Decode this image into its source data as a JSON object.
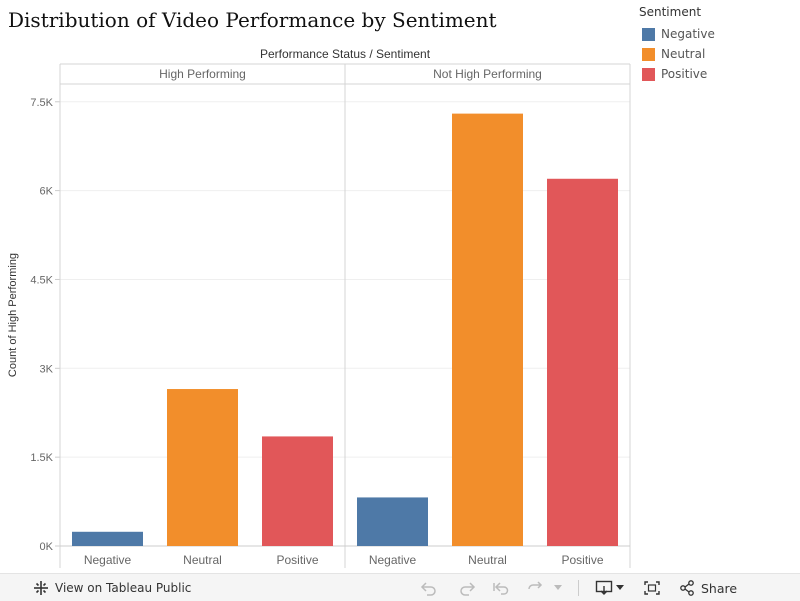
{
  "title": "Distribution of Video Performance by Sentiment",
  "legend": {
    "title": "Sentiment",
    "items": [
      {
        "label": "Negative",
        "color": "#4e79a7"
      },
      {
        "label": "Neutral",
        "color": "#f28e2b"
      },
      {
        "label": "Positive",
        "color": "#e15759"
      }
    ]
  },
  "chart_data": {
    "type": "bar",
    "header_title": "Performance Status / Sentiment",
    "panels": [
      "High Performing",
      "Not High Performing"
    ],
    "categories": [
      "Negative",
      "Neutral",
      "Positive"
    ],
    "colors": [
      "#4e79a7",
      "#f28e2b",
      "#e15759"
    ],
    "values": [
      [
        240,
        2650,
        1850
      ],
      [
        820,
        7300,
        6200
      ]
    ],
    "ylabel": "Count of High Performing",
    "ylim": [
      0,
      7800
    ],
    "yticks": [
      0,
      1500,
      3000,
      4500,
      6000,
      7500
    ],
    "yticklabels": [
      "0K",
      "1.5K",
      "3K",
      "4.5K",
      "6K",
      "7.5K"
    ],
    "grid": true
  },
  "toolbar": {
    "view_label": "View on Tableau Public",
    "share_label": "Share"
  }
}
